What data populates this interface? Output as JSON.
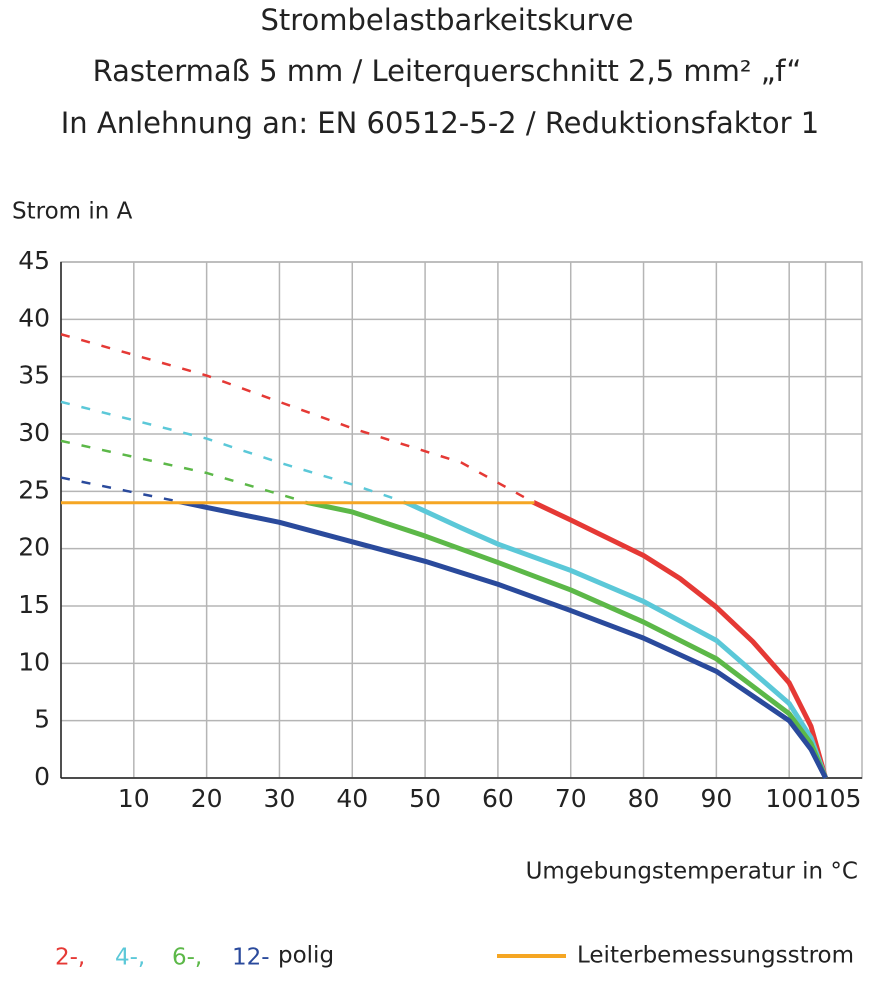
{
  "chart_data": {
    "type": "line",
    "title": [
      "Strombelastbarkeitskurve",
      "Rastermaß 5 mm / Leiterquerschnitt 2,5 mm² „f“",
      "In Anlehnung an: EN 60512-5-2 / Reduktionsfaktor 1"
    ],
    "y_label": "Strom in A",
    "x_label": "Umgebungstemperatur in °C",
    "legend_suffix": "polig",
    "xlim": [
      0,
      110
    ],
    "xticks": [
      10,
      20,
      30,
      40,
      50,
      60,
      70,
      80,
      90,
      100,
      105
    ],
    "ylim": [
      0,
      45
    ],
    "yticks": [
      0,
      5,
      10,
      15,
      20,
      25,
      30,
      35,
      40,
      45
    ],
    "grid": true,
    "series": [
      {
        "name": "2-,",
        "color": "#e53935",
        "x": [
          0,
          20,
          40,
          55,
          65,
          70,
          80,
          85,
          90,
          95,
          100,
          103,
          105
        ],
        "values": [
          38.7,
          35.1,
          30.5,
          27.5,
          24,
          22.5,
          19.4,
          17.4,
          14.9,
          11.9,
          8.3,
          4.5,
          0
        ]
      },
      {
        "name": "4-,",
        "color": "#5bc8d8",
        "x": [
          0,
          20,
          30,
          40,
          47.5,
          55,
          60,
          70,
          80,
          90,
          100,
          103,
          105
        ],
        "values": [
          32.8,
          29.6,
          27.5,
          25.6,
          24,
          21.8,
          20.4,
          18.1,
          15.4,
          12,
          6.5,
          3.5,
          0
        ]
      },
      {
        "name": "6-,",
        "color": "#5cb848",
        "x": [
          0,
          20,
          34,
          40,
          50,
          60,
          70,
          80,
          90,
          100,
          103,
          105
        ],
        "values": [
          29.4,
          26.6,
          24,
          23.2,
          21.1,
          18.8,
          16.4,
          13.6,
          10.4,
          5.6,
          3,
          0
        ]
      },
      {
        "name": "12-",
        "color": "#2a4a9c",
        "x": [
          0,
          17,
          20,
          30,
          40,
          50,
          60,
          70,
          80,
          90,
          100,
          103,
          105
        ],
        "values": [
          26.2,
          24,
          23.6,
          22.3,
          20.6,
          18.9,
          16.9,
          14.6,
          12.2,
          9.3,
          5,
          2.5,
          0
        ]
      },
      {
        "name": "Leiterbemessungsstrom",
        "color": "#f5a623",
        "x": [
          0,
          65
        ],
        "values": [
          24,
          24
        ]
      }
    ]
  }
}
